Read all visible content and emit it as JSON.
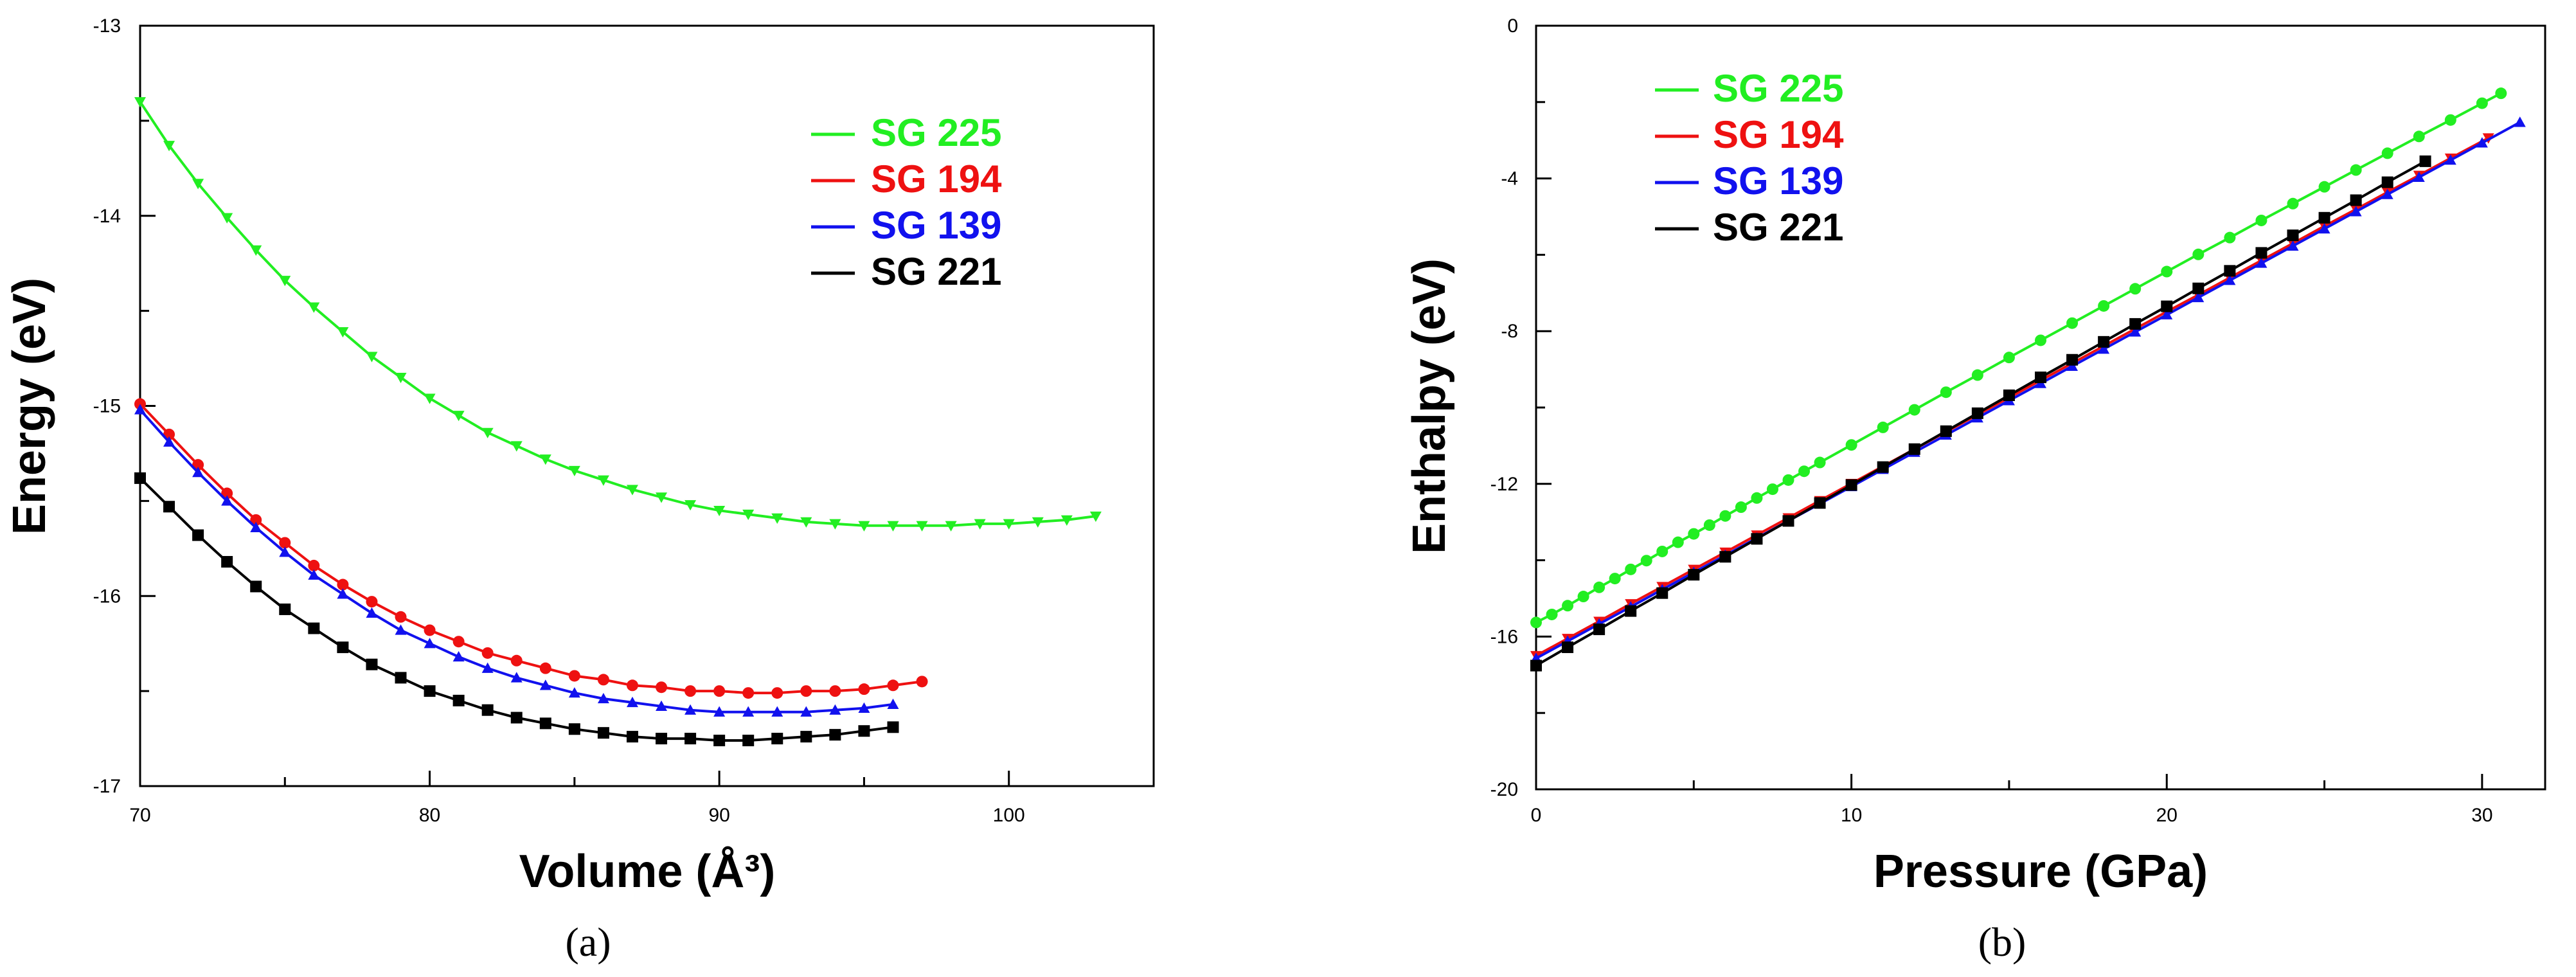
{
  "chart_data": [
    {
      "type": "line",
      "panel": "(a)",
      "xlabel": "Volume (Å³)",
      "ylabel": "Energy (eV)",
      "xlim": [
        70,
        105
      ],
      "ylim": [
        -17,
        -13
      ],
      "xticks": [
        70,
        80,
        90,
        100
      ],
      "yticks": [
        -13,
        -14,
        -15,
        -16,
        -17
      ],
      "legend_position": "top-right",
      "series": [
        {
          "name": "SG 225",
          "color": "#22ee22",
          "marker": "triangle-down",
          "x": [
            70,
            71,
            72,
            73,
            74,
            75,
            76,
            77,
            78,
            79,
            80,
            81,
            82,
            83,
            84,
            85,
            86,
            87,
            88,
            89,
            90,
            91,
            92,
            93,
            94,
            95,
            96,
            97,
            98,
            99,
            100,
            101,
            102,
            103
          ],
          "y": [
            -13.4,
            -13.63,
            -13.83,
            -14.01,
            -14.18,
            -14.34,
            -14.48,
            -14.61,
            -14.74,
            -14.85,
            -14.96,
            -15.05,
            -15.14,
            -15.21,
            -15.28,
            -15.34,
            -15.39,
            -15.44,
            -15.48,
            -15.52,
            -15.55,
            -15.57,
            -15.59,
            -15.61,
            -15.62,
            -15.63,
            -15.63,
            -15.63,
            -15.63,
            -15.62,
            -15.62,
            -15.61,
            -15.6,
            -15.58
          ]
        },
        {
          "name": "SG 194",
          "color": "#ee1111",
          "marker": "circle",
          "x": [
            70,
            71,
            72,
            73,
            74,
            75,
            76,
            77,
            78,
            79,
            80,
            81,
            82,
            83,
            84,
            85,
            86,
            87,
            88,
            89,
            90,
            91,
            92,
            93,
            94,
            95,
            96,
            97
          ],
          "y": [
            -14.99,
            -15.15,
            -15.31,
            -15.46,
            -15.6,
            -15.72,
            -15.84,
            -15.94,
            -16.03,
            -16.11,
            -16.18,
            -16.24,
            -16.3,
            -16.34,
            -16.38,
            -16.42,
            -16.44,
            -16.47,
            -16.48,
            -16.5,
            -16.5,
            -16.51,
            -16.51,
            -16.5,
            -16.5,
            -16.49,
            -16.47,
            -16.45
          ]
        },
        {
          "name": "SG 139",
          "color": "#1111ee",
          "marker": "triangle-up",
          "x": [
            70,
            71,
            72,
            73,
            74,
            75,
            76,
            77,
            78,
            79,
            80,
            81,
            82,
            83,
            84,
            85,
            86,
            87,
            88,
            89,
            90,
            91,
            92,
            93,
            94,
            95,
            96
          ],
          "y": [
            -15.02,
            -15.19,
            -15.35,
            -15.5,
            -15.64,
            -15.77,
            -15.89,
            -15.99,
            -16.09,
            -16.18,
            -16.25,
            -16.32,
            -16.38,
            -16.43,
            -16.47,
            -16.51,
            -16.54,
            -16.56,
            -16.58,
            -16.6,
            -16.61,
            -16.61,
            -16.61,
            -16.61,
            -16.6,
            -16.59,
            -16.57
          ]
        },
        {
          "name": "SG 221",
          "color": "#000000",
          "marker": "square",
          "x": [
            70,
            71,
            72,
            73,
            74,
            75,
            76,
            77,
            78,
            79,
            80,
            81,
            82,
            83,
            84,
            85,
            86,
            87,
            88,
            89,
            90,
            91,
            92,
            93,
            94,
            95,
            96
          ],
          "y": [
            -15.38,
            -15.53,
            -15.68,
            -15.82,
            -15.95,
            -16.07,
            -16.17,
            -16.27,
            -16.36,
            -16.43,
            -16.5,
            -16.55,
            -16.6,
            -16.64,
            -16.67,
            -16.7,
            -16.72,
            -16.74,
            -16.75,
            -16.75,
            -16.76,
            -16.76,
            -16.75,
            -16.74,
            -16.73,
            -16.71,
            -16.69
          ]
        }
      ]
    },
    {
      "type": "line",
      "panel": "(b)",
      "xlabel": "Pressure (GPa)",
      "ylabel": "Enthalpy (eV)",
      "xlim": [
        0,
        32
      ],
      "ylim": [
        -20,
        0
      ],
      "xticks": [
        0,
        10,
        20,
        30
      ],
      "yticks": [
        0,
        -4,
        -8,
        -12,
        -16,
        -20
      ],
      "legend_position": "top-left",
      "series": [
        {
          "name": "SG 225",
          "color": "#22ee22",
          "marker": "circle",
          "x": [
            0,
            0.5,
            1,
            1.5,
            2,
            2.5,
            3,
            3.5,
            4,
            4.5,
            5,
            5.5,
            6,
            6.5,
            7,
            7.5,
            8,
            8.5,
            9,
            10,
            11,
            12,
            13,
            14,
            15,
            16,
            17,
            18,
            19,
            20,
            21,
            22,
            23,
            24,
            25,
            26,
            27,
            28,
            29,
            30,
            30.6
          ],
          "y": [
            -15.63,
            -15.42,
            -15.19,
            -14.95,
            -14.71,
            -14.48,
            -14.24,
            -14.01,
            -13.77,
            -13.53,
            -13.31,
            -13.08,
            -12.84,
            -12.61,
            -12.37,
            -12.14,
            -11.9,
            -11.67,
            -11.44,
            -10.98,
            -10.52,
            -10.06,
            -9.6,
            -9.15,
            -8.69,
            -8.24,
            -7.79,
            -7.34,
            -6.89,
            -6.44,
            -5.99,
            -5.55,
            -5.1,
            -4.66,
            -4.22,
            -3.78,
            -3.34,
            -2.9,
            -2.47,
            -2.03,
            -1.77
          ]
        },
        {
          "name": "SG 194",
          "color": "#ee1111",
          "marker": "triangle-down",
          "x": [
            0,
            1,
            2,
            3,
            4,
            5,
            6,
            7,
            8,
            9,
            10,
            11,
            12,
            13,
            14,
            15,
            16,
            17,
            18,
            19,
            20,
            21,
            22,
            23,
            24,
            25,
            26,
            27,
            28,
            29,
            30.2
          ],
          "y": [
            -16.5,
            -16.05,
            -15.6,
            -15.14,
            -14.69,
            -14.24,
            -13.79,
            -13.34,
            -12.89,
            -12.44,
            -11.99,
            -11.54,
            -11.09,
            -10.64,
            -10.19,
            -9.74,
            -9.29,
            -8.84,
            -8.39,
            -7.94,
            -7.49,
            -7.05,
            -6.6,
            -6.15,
            -5.7,
            -5.25,
            -4.81,
            -4.36,
            -3.92,
            -3.47,
            -2.94
          ]
        },
        {
          "name": "SG 139",
          "color": "#1111ee",
          "marker": "triangle-up",
          "x": [
            0,
            1,
            2,
            3,
            4,
            5,
            6,
            7,
            8,
            9,
            10,
            11,
            12,
            13,
            14,
            15,
            16,
            17,
            18,
            19,
            20,
            21,
            22,
            23,
            24,
            25,
            26,
            27,
            28,
            29,
            30,
            31.2
          ],
          "y": [
            -16.57,
            -16.12,
            -15.67,
            -15.22,
            -14.77,
            -14.32,
            -13.87,
            -13.42,
            -12.97,
            -12.52,
            -12.07,
            -11.62,
            -11.17,
            -10.72,
            -10.27,
            -9.82,
            -9.37,
            -8.92,
            -8.47,
            -8.02,
            -7.57,
            -7.12,
            -6.67,
            -6.22,
            -5.77,
            -5.32,
            -4.87,
            -4.42,
            -3.97,
            -3.52,
            -3.07,
            -2.53
          ]
        },
        {
          "name": "SG 221",
          "color": "#000000",
          "marker": "square",
          "x": [
            0,
            1,
            2,
            3,
            4,
            5,
            6,
            7,
            8,
            9,
            10,
            11,
            12,
            13,
            14,
            15,
            16,
            17,
            18,
            19,
            20,
            21,
            22,
            23,
            24,
            25,
            26,
            27,
            28.2
          ],
          "y": [
            -16.76,
            -16.28,
            -15.81,
            -15.33,
            -14.86,
            -14.38,
            -13.91,
            -13.44,
            -12.97,
            -12.5,
            -12.03,
            -11.56,
            -11.09,
            -10.62,
            -10.15,
            -9.68,
            -9.21,
            -8.75,
            -8.28,
            -7.81,
            -7.35,
            -6.88,
            -6.42,
            -5.95,
            -5.49,
            -5.03,
            -4.57,
            -4.1,
            -3.55
          ]
        }
      ]
    }
  ],
  "captions": [
    "(a)",
    "(b)"
  ]
}
